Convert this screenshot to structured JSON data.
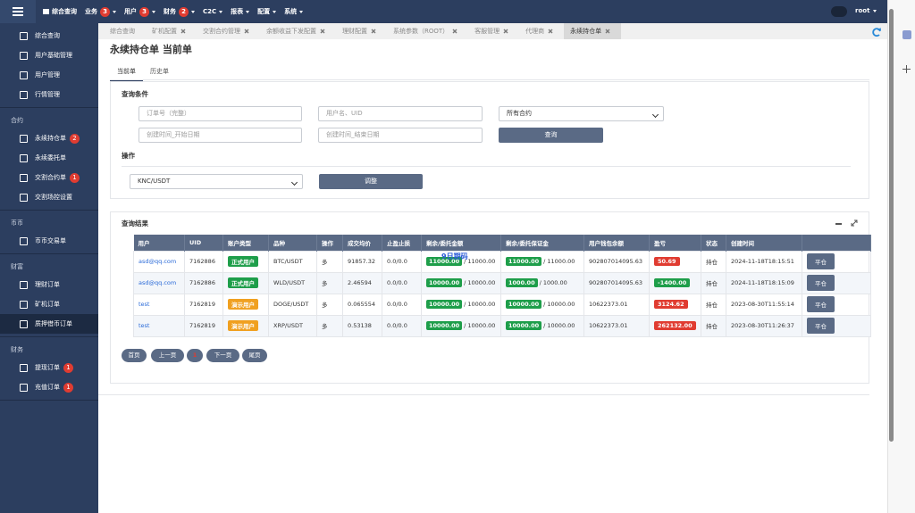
{
  "navbar": {
    "items": [
      {
        "label": "综合查询"
      },
      {
        "label": "业务",
        "badge": 3
      },
      {
        "label": "用户",
        "badge": 3
      },
      {
        "label": "财务",
        "badge": 2
      },
      {
        "label": "C2C"
      },
      {
        "label": "报表"
      },
      {
        "label": "配置"
      },
      {
        "label": "系统"
      }
    ],
    "user": "root"
  },
  "sidebar": {
    "groups": [
      {
        "items": [
          {
            "label": "综合查询"
          },
          {
            "label": "用户基础管理"
          },
          {
            "label": "用户管理"
          },
          {
            "label": "行情管理"
          }
        ]
      },
      {
        "title": "合约",
        "items": [
          {
            "label": "永续持仓单",
            "badge": 2
          },
          {
            "label": "永续委托单"
          },
          {
            "label": "交割合约单",
            "badge": 1
          },
          {
            "label": "交割场控设置"
          }
        ]
      },
      {
        "title": "币币",
        "items": [
          {
            "label": "币币交易单"
          }
        ]
      },
      {
        "title": "财富",
        "items": [
          {
            "label": "理财订单"
          },
          {
            "label": "矿机订单"
          },
          {
            "label": "质押借币订单",
            "active": true
          }
        ]
      },
      {
        "title": "财务",
        "items": [
          {
            "label": "提现订单",
            "badge": 1
          },
          {
            "label": "充值订单",
            "badge": 1
          }
        ]
      }
    ]
  },
  "tabs": [
    {
      "label": "综合查询"
    },
    {
      "label": "矿机配置",
      "closable": true
    },
    {
      "label": "交割合约管理",
      "closable": true
    },
    {
      "label": "余额收益下发配置",
      "closable": true
    },
    {
      "label": "理财配置",
      "closable": true
    },
    {
      "label": "系统参数（ROOT）",
      "closable": true
    },
    {
      "label": "客服管理",
      "closable": true
    },
    {
      "label": "代理商",
      "closable": true
    },
    {
      "label": "永续持仓单",
      "closable": true,
      "active": true
    }
  ],
  "page_title": "永续持仓单 当前单",
  "subtabs": [
    {
      "label": "当前单",
      "active": true
    },
    {
      "label": "历史单"
    }
  ],
  "query": {
    "title": "查询条件",
    "order_placeholder": "订单号（完整）",
    "user_placeholder": "用户名、UID",
    "contract_select": "所有合约",
    "start_placeholder": "创建时间_开始日期",
    "end_placeholder": "创建时间_结束日期",
    "search_button": "查询"
  },
  "operation": {
    "title": "操作",
    "symbol_select": "KNC/USDT",
    "adjust_button": "调整"
  },
  "results": {
    "title": "查询结果",
    "overlay_text": "9日期码",
    "columns": [
      "用户",
      "UID",
      "账户类型",
      "品种",
      "操作",
      "成交均价",
      "止盈止损",
      "剩余/委托金额",
      "剩余/委托保证金",
      "用户钱包余额",
      "盈亏",
      "状态",
      "创建时间"
    ],
    "rows": [
      {
        "user": "asd@qq.com",
        "uid": "7162886",
        "type": "正式用户",
        "type_color": "#1e9e4a",
        "symbol": "BTC/USDT",
        "side": "多",
        "price": "91857.32",
        "tpsl": "0.0/0.0",
        "amount": [
          "11000.00",
          "/ 11000.00"
        ],
        "margin": [
          "11000.00",
          "/ 11000.00"
        ],
        "balance": "902807014095.63",
        "pnl": "50.69",
        "pnl_color": "#e03c31",
        "status": "持仓",
        "time": "2024-11-18T18:15:51",
        "action": "平仓"
      },
      {
        "user": "asd@qq.com",
        "uid": "7162886",
        "type": "正式用户",
        "type_color": "#1e9e4a",
        "symbol": "WLD/USDT",
        "side": "多",
        "price": "2.46594",
        "tpsl": "0.0/0.0",
        "amount": [
          "10000.00",
          "/ 10000.00"
        ],
        "margin": [
          "1000.00",
          "/ 1000.00"
        ],
        "balance": "902807014095.63",
        "pnl": "-1400.00",
        "pnl_color": "#1e9e4a",
        "status": "持仓",
        "time": "2024-11-18T18:15:09",
        "action": "平仓"
      },
      {
        "user": "test",
        "uid": "7162819",
        "type": "演示用户",
        "type_color": "#f0a020",
        "symbol": "DOGE/USDT",
        "side": "多",
        "price": "0.065554",
        "tpsl": "0.0/0.0",
        "amount": [
          "10000.00",
          "/ 10000.00"
        ],
        "margin": [
          "10000.00",
          "/ 10000.00"
        ],
        "balance": "10622373.01",
        "pnl": "3124.62",
        "pnl_color": "#e03c31",
        "status": "持仓",
        "time": "2023-08-30T11:55:14",
        "action": "平仓"
      },
      {
        "user": "test",
        "uid": "7162819",
        "type": "演示用户",
        "type_color": "#f0a020",
        "symbol": "XRP/USDT",
        "side": "多",
        "price": "0.53138",
        "tpsl": "0.0/0.0",
        "amount": [
          "10000.00",
          "/ 10000.00"
        ],
        "margin": [
          "10000.00",
          "/ 10000.00"
        ],
        "balance": "10622373.01",
        "pnl": "262132.00",
        "pnl_color": "#e03c31",
        "status": "持仓",
        "time": "2023-08-30T11:26:37",
        "action": "平仓"
      }
    ]
  },
  "pagination": {
    "first": "首页",
    "prev": "上一页",
    "current": 1,
    "next": "下一页",
    "last": "尾页"
  }
}
